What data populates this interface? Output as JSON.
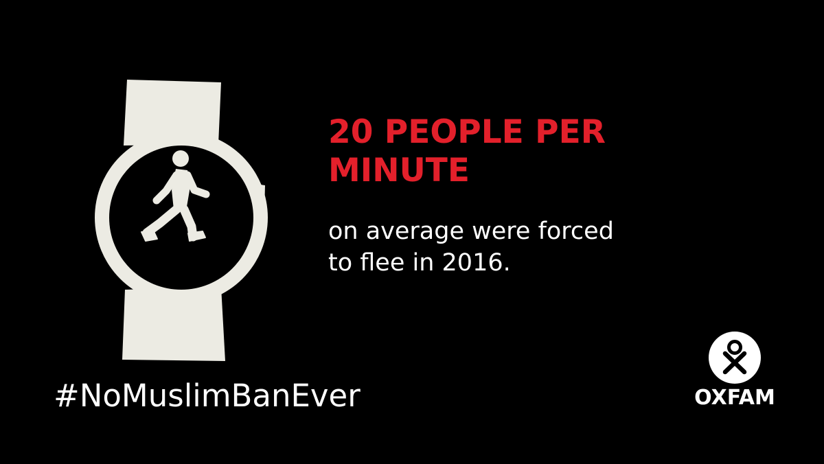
{
  "headline": {
    "line1": "20 PEOPLE PER",
    "line2": "MINUTE"
  },
  "subtext": {
    "line1": "on average were forced",
    "line2": "to flee in 2016."
  },
  "hashtag": "#NoMuslimBanEver",
  "logo": {
    "wordmark": "OXFAM",
    "icon": "oxfam-logo-icon"
  },
  "illustration": {
    "icon": "walking-person-watch-icon"
  },
  "colors": {
    "background": "#000000",
    "headline": "#E3202B",
    "text": "#FFFFFF",
    "illustration": "#ECEBE3"
  }
}
